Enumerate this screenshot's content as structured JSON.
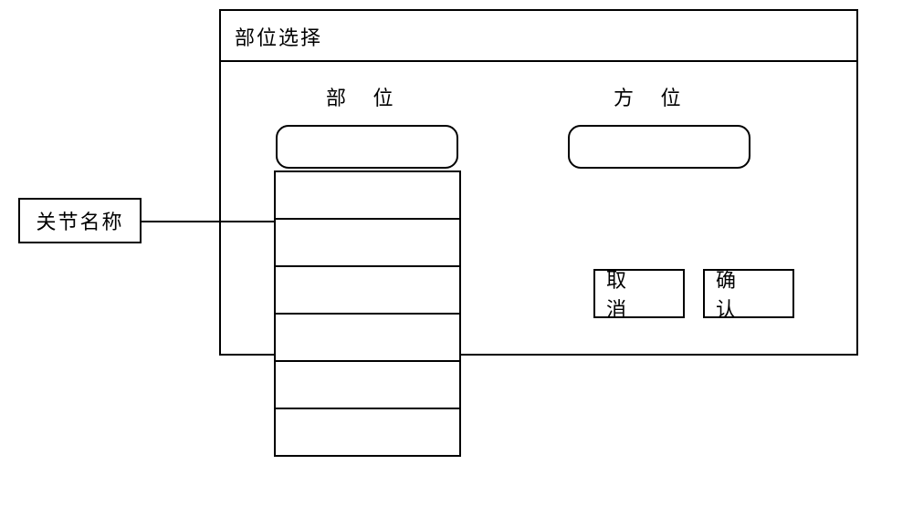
{
  "dialog": {
    "title": "部位选择",
    "columns": {
      "part_label": "部 位",
      "direction_label": "方 位"
    },
    "part_select_value": "",
    "direction_select_value": "",
    "dropdown_items": [
      "",
      "",
      "",
      "",
      "",
      ""
    ],
    "buttons": {
      "cancel_label": "取 消",
      "confirm_label": "确 认"
    }
  },
  "annotation": {
    "label": "关节名称"
  },
  "styling": {
    "dialog_border_color": "#000000",
    "dialog_border_width": 2,
    "background_color": "#ffffff",
    "font_size": 22,
    "select_border_radius": 14,
    "button_width": 100,
    "button_height": 54,
    "letter_spacing_wide": 12,
    "dropdown_item_height": 52
  }
}
